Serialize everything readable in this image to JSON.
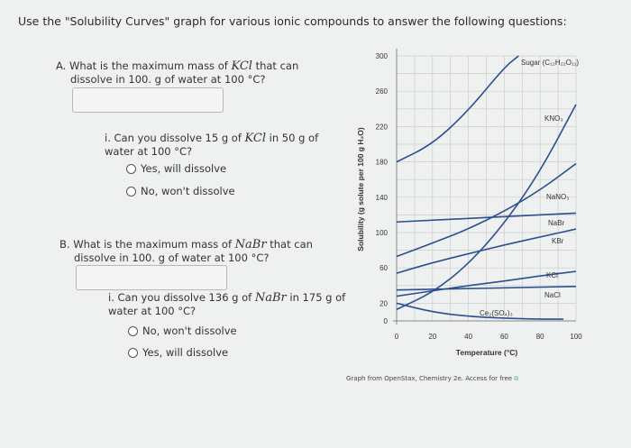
{
  "instructions": "Use the \"Solubility Curves\" graph for various ionic compounds to answer the following questions:",
  "questions": [
    {
      "pre": "A. What is the maximum mass of ",
      "formula": "KCl",
      "post": " that can",
      "line2": "dissolve in 100. g of water at 100 °C?",
      "answer": "",
      "sub": {
        "pre": "i. Can you dissolve 15 g of ",
        "formula": "KCl",
        "post": " in 50 g of",
        "line2": "water at 100 °C?",
        "options": [
          "Yes, will dissolve",
          "No, won't dissolve"
        ]
      }
    },
    {
      "pre": "B. What is the maximum mass of ",
      "formula": "NaBr",
      "post": " that can",
      "line2": "dissolve in 100. g of water at 100 °C?",
      "answer": "",
      "sub": {
        "pre": "i. Can you dissolve 136 g of ",
        "formula": "NaBr",
        "post": " in 175 g of",
        "line2": "water at 100 °C?",
        "options": [
          "No, won't dissolve",
          "Yes, will dissolve"
        ]
      }
    }
  ],
  "credit": "Graph from OpenStax, Chemistry 2e. Access for free",
  "chart_data": {
    "type": "line",
    "title": "",
    "xlabel": "Temperature (°C)",
    "ylabel": "Solubility (g solute per 100 g H₂O)",
    "xlim": [
      0,
      100
    ],
    "ylim": [
      0,
      300
    ],
    "xticks": [
      "0",
      "20",
      "40",
      "60",
      "80",
      "100"
    ],
    "yticks": [
      "0",
      "20",
      "60",
      "100",
      "140",
      "180",
      "220",
      "260",
      "300"
    ],
    "grid": true,
    "line_color": "#2c4f8f",
    "series": [
      {
        "name": "Sugar (C₁₂H₂₂O₁₁)",
        "x": [
          0,
          20,
          40,
          60,
          68
        ],
        "y": [
          180,
          200,
          238,
          287,
          300
        ]
      },
      {
        "name": "KNO₃",
        "x": [
          0,
          20,
          40,
          60,
          80,
          100
        ],
        "y": [
          13,
          32,
          64,
          110,
          169,
          245
        ]
      },
      {
        "name": "NaNO₃",
        "x": [
          0,
          20,
          40,
          60,
          80,
          100
        ],
        "y": [
          73,
          88,
          104,
          124,
          148,
          178
        ]
      },
      {
        "name": "NaBr",
        "x": [
          0,
          100
        ],
        "y": [
          112,
          122
        ]
      },
      {
        "name": "KBr",
        "x": [
          0,
          20,
          40,
          60,
          80,
          100
        ],
        "y": [
          54,
          66,
          76,
          86,
          95,
          104
        ]
      },
      {
        "name": "KCl",
        "x": [
          0,
          20,
          40,
          60,
          80,
          100
        ],
        "y": [
          28,
          34,
          40,
          45,
          51,
          56
        ]
      },
      {
        "name": "NaCl",
        "x": [
          0,
          100
        ],
        "y": [
          35,
          39
        ]
      },
      {
        "name": "Ce₂(SO₄)₃",
        "x": [
          0,
          20,
          40,
          60,
          80,
          93
        ],
        "y": [
          20,
          10,
          5,
          3,
          2,
          2
        ]
      }
    ]
  }
}
